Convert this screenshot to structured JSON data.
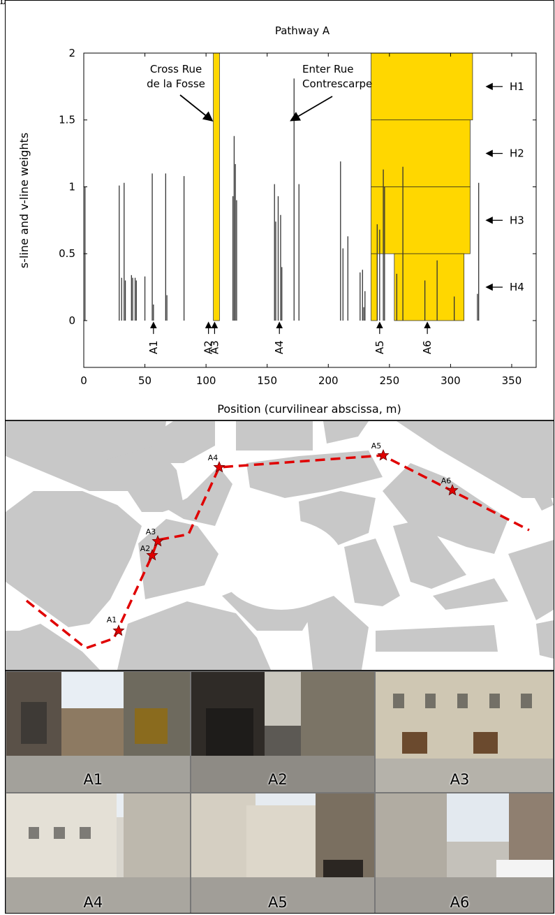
{
  "page_letter": "b",
  "chart_data": {
    "type": "bar",
    "title": "Pathway A",
    "xlabel": "Position (curvilinear abscissa, m)",
    "ylabel": "s-line and v-line weights",
    "xlim": [
      0,
      370
    ],
    "ylim": [
      -0.35,
      2
    ],
    "xticks": [
      0,
      50,
      100,
      150,
      200,
      250,
      300,
      350
    ],
    "yticks": [
      0,
      0.5,
      1,
      1.5,
      2
    ],
    "grid": false,
    "series": [
      {
        "kind": "vertical-lines",
        "x": [
          1,
          29,
          31,
          33,
          34,
          39,
          40,
          42,
          43,
          50,
          51,
          56,
          57,
          67,
          68,
          82,
          122,
          123,
          124,
          125,
          156,
          157,
          159,
          161,
          162,
          172,
          176,
          210,
          212,
          216,
          226,
          228,
          229,
          230,
          240,
          242,
          245,
          246,
          256,
          261,
          279,
          289,
          303,
          322,
          323
        ],
        "values": [
          1.0,
          1.01,
          0.32,
          1.03,
          0.3,
          0.34,
          0.32,
          0.32,
          0.3,
          0.33,
          0.0,
          1.1,
          0.12,
          1.1,
          0.19,
          1.08,
          0.93,
          1.38,
          1.17,
          0.9,
          1.02,
          0.74,
          0.93,
          0.79,
          0.4,
          1.81,
          1.02,
          1.19,
          0.54,
          0.63,
          0.36,
          0.38,
          0.1,
          0.22,
          0.72,
          0.68,
          1.13,
          1.0,
          0.35,
          1.15,
          0.3,
          0.45,
          0.18,
          0.2,
          1.03
        ]
      },
      {
        "kind": "yellow-blocks",
        "color": "#FFD700",
        "blocks": [
          {
            "x0": 106,
            "x1": 111,
            "y0": 0,
            "y1": 2
          },
          {
            "x0": 235,
            "x1": 318,
            "y0": 1.5,
            "y1": 2
          },
          {
            "x0": 235,
            "x1": 316,
            "y0": 1.0,
            "y1": 1.5
          },
          {
            "x0": 235,
            "x1": 316,
            "y0": 0.5,
            "y1": 1.0
          },
          {
            "x0": 235,
            "x1": 240,
            "y0": 0,
            "y1": 0.5
          },
          {
            "x0": 254,
            "x1": 311,
            "y0": 0,
            "y1": 0.5
          }
        ]
      }
    ],
    "position_markers": [
      {
        "label": "A1",
        "x": 57
      },
      {
        "label": "A2",
        "x": 102
      },
      {
        "label": "A3",
        "x": 107
      },
      {
        "label": "A4",
        "x": 160
      },
      {
        "label": "A5",
        "x": 242
      },
      {
        "label": "A6",
        "x": 281
      }
    ],
    "h_markers": [
      {
        "label": "H1",
        "y": 1.75
      },
      {
        "label": "H2",
        "y": 1.25
      },
      {
        "label": "H3",
        "y": 0.75
      },
      {
        "label": "H4",
        "y": 0.25
      }
    ],
    "annotations": [
      {
        "lines": [
          "Cross Rue",
          "de la Fosse"
        ],
        "target_x": 106,
        "target_y": 1.5
      },
      {
        "lines": [
          "Enter Rue",
          "Contrescarpe"
        ],
        "target_x": 172,
        "target_y": 1.5
      }
    ]
  },
  "map": {
    "stops": [
      "A1",
      "A2",
      "A3",
      "A4",
      "A5",
      "A6"
    ]
  },
  "photos": [
    {
      "label": "A1"
    },
    {
      "label": "A2"
    },
    {
      "label": "A3"
    },
    {
      "label": "A4"
    },
    {
      "label": "A5"
    },
    {
      "label": "A6"
    }
  ]
}
